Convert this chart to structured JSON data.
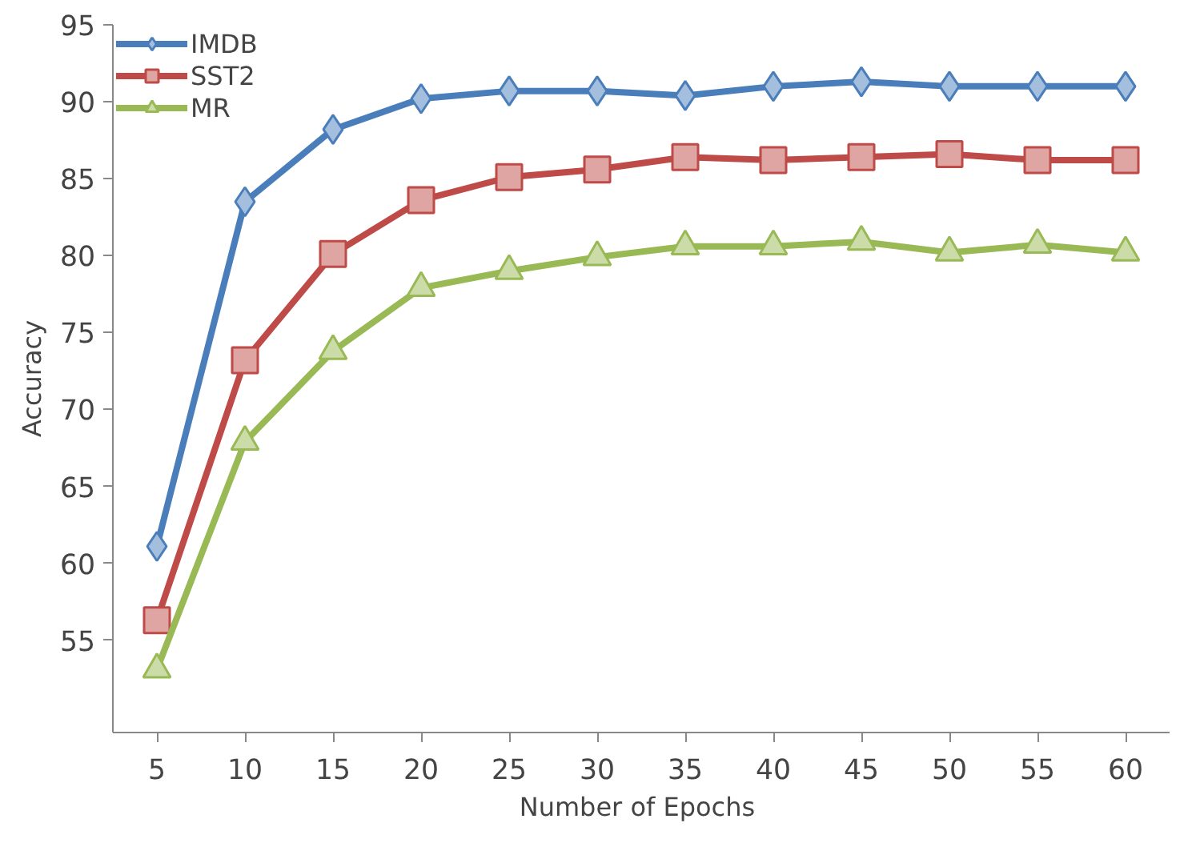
{
  "chart_data": {
    "type": "line",
    "xlabel": "Number  of Epochs",
    "ylabel": "Accuracy",
    "x": [
      5,
      10,
      15,
      20,
      25,
      30,
      35,
      40,
      45,
      50,
      55,
      60
    ],
    "xlim": [
      2.5,
      62.5
    ],
    "xticks": [
      5,
      10,
      15,
      20,
      25,
      30,
      35,
      40,
      45,
      50,
      55,
      60
    ],
    "ylim": [
      49,
      95
    ],
    "yticks": [
      55,
      60,
      65,
      70,
      75,
      80,
      85,
      90,
      95
    ],
    "grid": false,
    "legend": "top left",
    "line_style": "solid",
    "series": [
      {
        "name": "IMDB",
        "color": "#4a7ebb",
        "marker": "diamond",
        "values": [
          61.1,
          83.5,
          88.2,
          90.2,
          90.7,
          90.7,
          90.4,
          91.0,
          91.3,
          91.0,
          91.0,
          91.0
        ]
      },
      {
        "name": "SST2",
        "color": "#be4b48",
        "marker": "square",
        "values": [
          56.3,
          73.2,
          80.1,
          83.6,
          85.1,
          85.6,
          86.4,
          86.2,
          86.4,
          86.6,
          86.2,
          86.2
        ]
      },
      {
        "name": "MR",
        "color": "#98b954",
        "marker": "triangle",
        "values": [
          53.1,
          67.9,
          73.8,
          77.9,
          79.0,
          79.9,
          80.6,
          80.6,
          80.9,
          80.2,
          80.7,
          80.2
        ]
      }
    ]
  }
}
